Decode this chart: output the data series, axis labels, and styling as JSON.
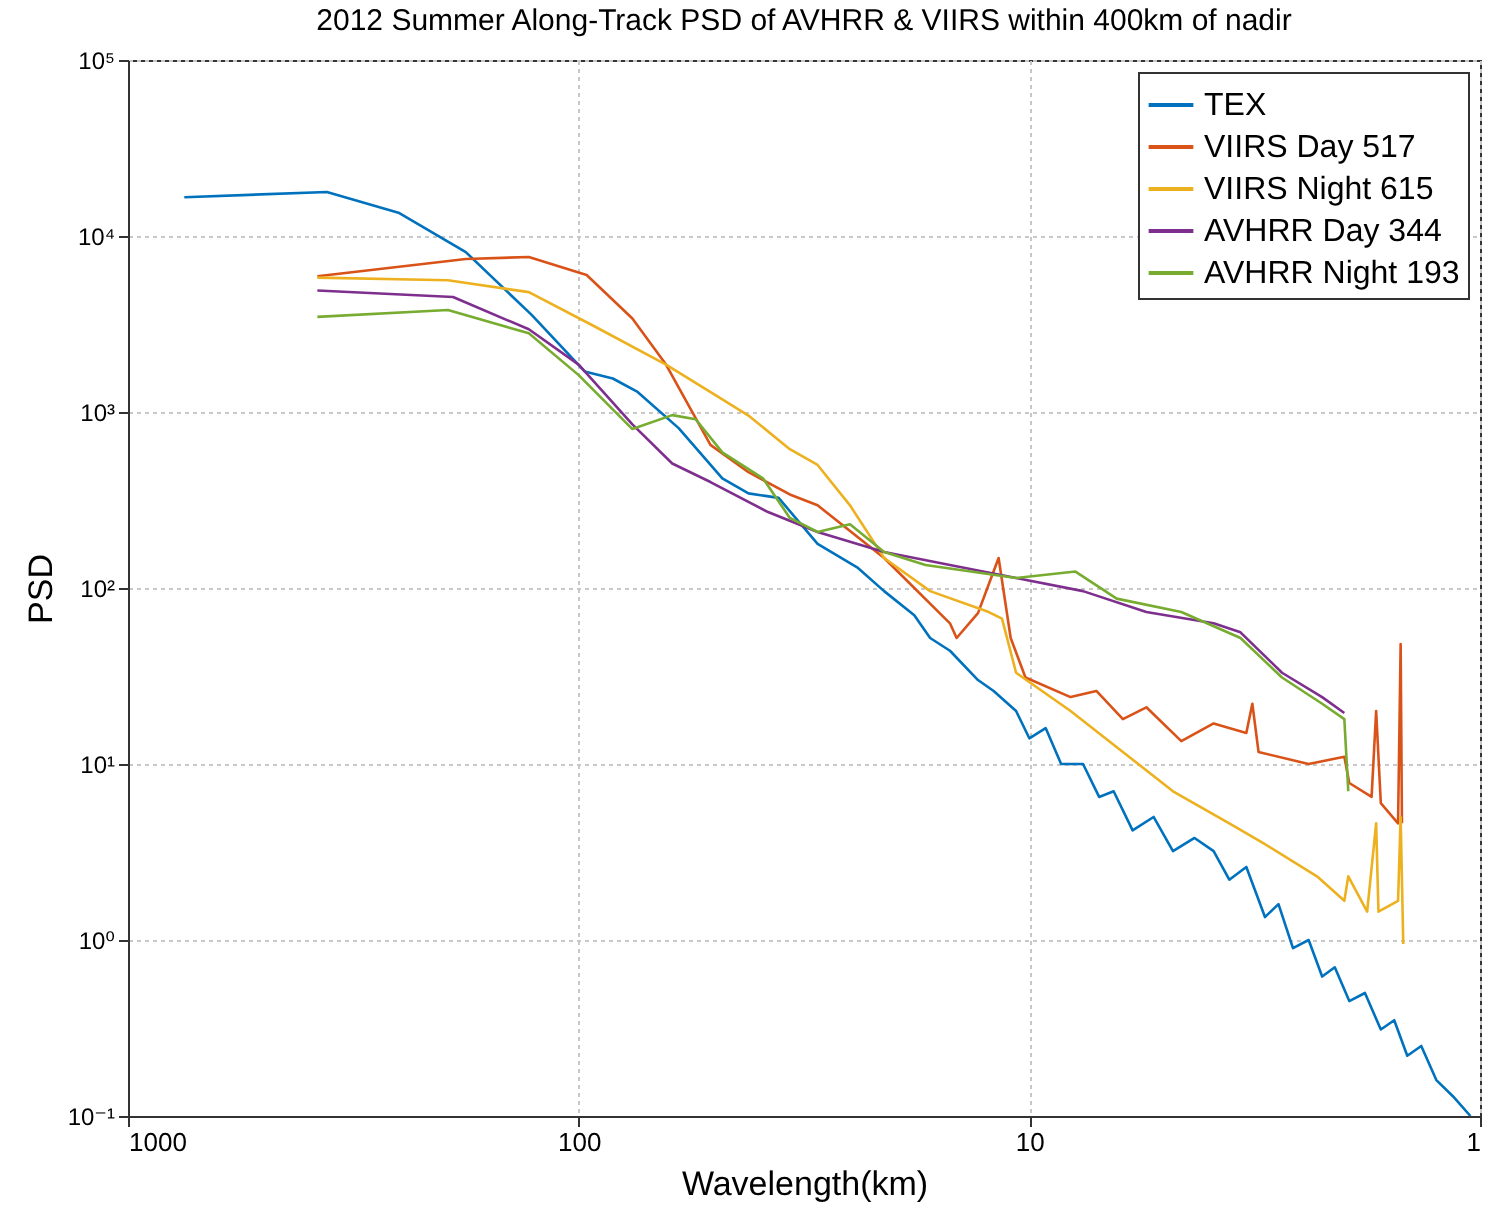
{
  "chart_data": {
    "type": "line",
    "title": "2012 Summer Along-Track PSD of AVHRR & VIIRS within 400km of nadir",
    "xlabel": "Wavelength(km)",
    "ylabel": "PSD",
    "log": "xy",
    "grid": true,
    "legend": "top right",
    "xlim": [
      1000,
      1
    ],
    "xticks": [
      1000,
      100,
      10,
      1
    ],
    "ylim": [
      0.1,
      100000
    ],
    "yticks": [
      {
        "value": 0.1,
        "label": "10⁻¹"
      },
      {
        "value": 1,
        "label": "10⁰"
      },
      {
        "value": 10,
        "label": "10¹"
      },
      {
        "value": 100,
        "label": "10²"
      },
      {
        "value": 1000,
        "label": "10³"
      },
      {
        "value": 10000,
        "label": "10⁴"
      },
      {
        "value": 100000,
        "label": "10⁵"
      }
    ],
    "series": [
      {
        "name": "TEX",
        "color": "#0072bd",
        "x": [
          750,
          362,
          250,
          178,
          127,
          97,
          84,
          74,
          60,
          48,
          42,
          36,
          29.5,
          24,
          21,
          18,
          16.6,
          15,
          13,
          12,
          10.7,
          10,
          9.2,
          8.5,
          7.6,
          7,
          6.5,
          5.9,
          5.3,
          4.8,
          4.3,
          3.9,
          3.6,
          3.3,
          3.0,
          2.8,
          2.6,
          2.4,
          2.24,
          2.1,
          1.95,
          1.8,
          1.66,
          1.55,
          1.45,
          1.35,
          1.25,
          1.15,
          1.05
        ],
        "values": [
          16600,
          17800,
          13500,
          8100,
          3550,
          1700,
          1550,
          1300,
          810,
          420,
          345,
          325,
          178,
          130,
          96,
          70,
          52,
          44,
          30,
          26,
          20,
          14,
          16,
          10,
          10,
          6.5,
          7,
          4.2,
          5,
          3.2,
          3.8,
          3.2,
          2.2,
          2.6,
          1.35,
          1.6,
          0.9,
          1.0,
          0.62,
          0.7,
          0.45,
          0.5,
          0.31,
          0.35,
          0.22,
          0.25,
          0.16,
          0.13,
          0.1
        ]
      },
      {
        "name": "VIIRS Day 517",
        "color": "#d95319",
        "x": [
          380,
          178,
          129,
          96,
          76,
          64,
          51,
          42,
          34,
          29.5,
          21,
          15,
          14.5,
          13,
          11.7,
          11,
          10.2,
          8.1,
          7.1,
          6.2,
          5.5,
          4.6,
          3.9,
          3.3,
          3.2,
          3.1,
          2.4,
          2.0,
          1.95,
          1.74,
          1.7,
          1.66,
          1.52,
          1.5,
          1.49
        ],
        "values": [
          5900,
          7400,
          7600,
          6000,
          3400,
          1860,
          650,
          455,
          340,
          295,
          148,
          63,
          52,
          72,
          148,
          52,
          31,
          24,
          26,
          18,
          21,
          13.5,
          17,
          15,
          22,
          11.7,
          10,
          11,
          7.8,
          6.5,
          20,
          6,
          4.6,
          48,
          4.6
        ]
      },
      {
        "name": "VIIRS Night 615",
        "color": "#edb120",
        "x": [
          380,
          195,
          129,
          93,
          64,
          48,
          42,
          34,
          29.5,
          25,
          21,
          16.6,
          12.3,
          11.5,
          10.7,
          8.1,
          6.2,
          4.8,
          3.6,
          3.0,
          2.3,
          2.0,
          1.96,
          1.78,
          1.7,
          1.68,
          1.52,
          1.5,
          1.48
        ],
        "values": [
          5800,
          5600,
          4800,
          3100,
          1860,
          1180,
          955,
          615,
          500,
          295,
          148,
          96,
          73,
          67,
          33,
          20,
          11.7,
          7.0,
          4.6,
          3.5,
          2.3,
          1.67,
          2.3,
          1.45,
          4.6,
          1.45,
          1.67,
          5,
          0.95
        ]
      },
      {
        "name": "AVHRR Day 344",
        "color": "#7e2f8e",
        "x": [
          380,
          190,
          129,
          100,
          76,
          62,
          51,
          38,
          29.5,
          21,
          15,
          10.7,
          7.6,
          5.5,
          3.9,
          3.4,
          2.75,
          2.24,
          2.0
        ],
        "values": [
          4900,
          4500,
          2950,
          1860,
          850,
          510,
          400,
          270,
          208,
          160,
          135,
          114,
          96,
          73,
          63,
          56,
          33,
          24,
          19.5
        ]
      },
      {
        "name": "AVHRR Night 193",
        "color": "#77ac30",
        "x": [
          380,
          195,
          129,
          100,
          76,
          62,
          55,
          48,
          39,
          34,
          29.5,
          25,
          21,
          17,
          10.7,
          7.9,
          6.4,
          4.6,
          3.4,
          2.75,
          2.24,
          2.0,
          1.96
        ],
        "values": [
          3470,
          3800,
          2800,
          1620,
          800,
          960,
          910,
          590,
          420,
          250,
          208,
          230,
          160,
          135,
          114,
          124,
          87,
          73,
          52,
          31,
          22,
          18,
          7
        ]
      }
    ]
  }
}
